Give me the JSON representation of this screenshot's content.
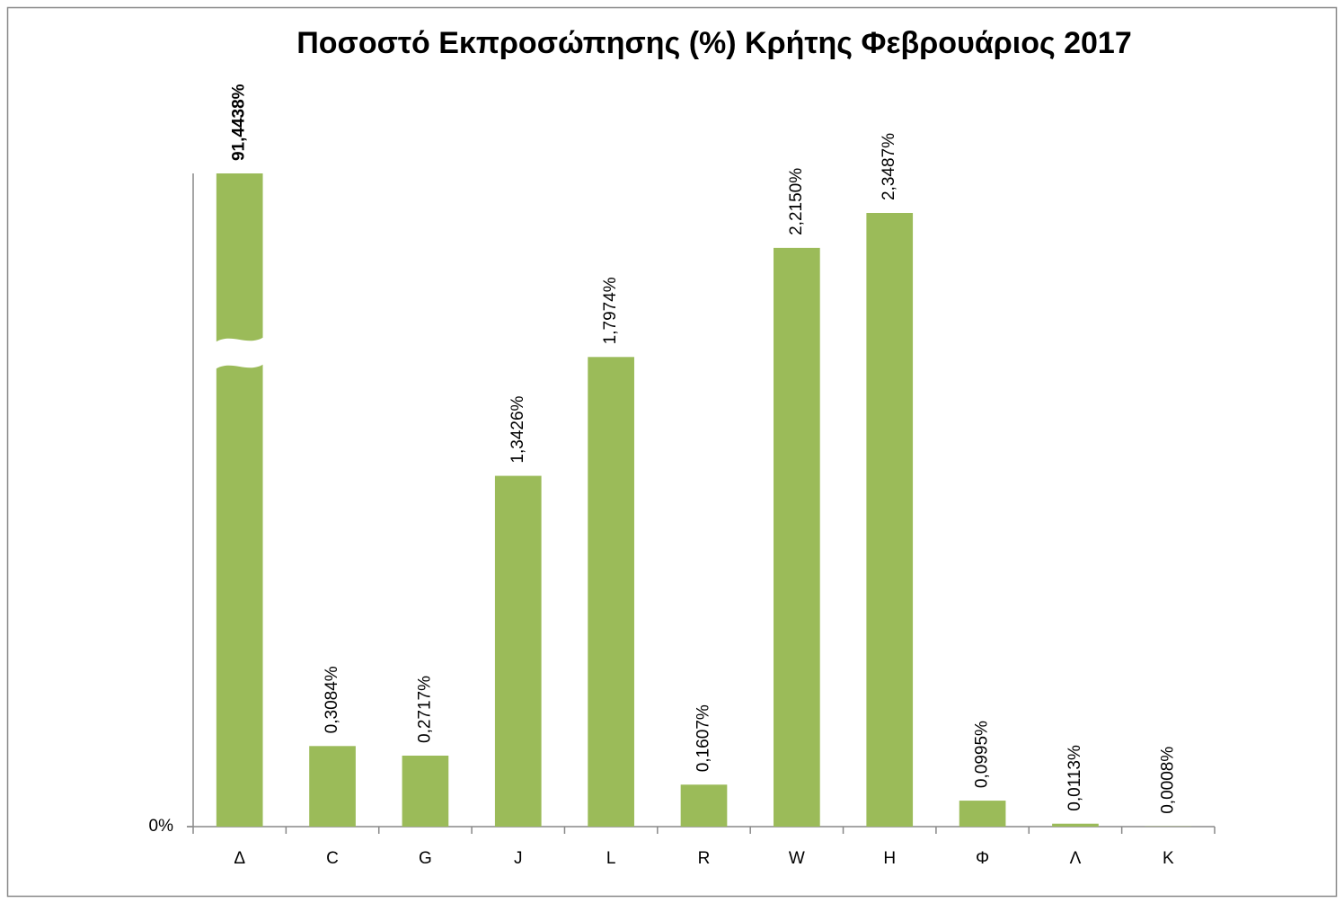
{
  "chart_data": {
    "type": "bar",
    "title": "Ποσοστό Εκπροσώπησης (%) Κρήτης Φεβρουάριος 2017",
    "categories": [
      "Δ",
      "C",
      "G",
      "J",
      "L",
      "R",
      "W",
      "H",
      "Φ",
      "Λ",
      "K"
    ],
    "values": [
      91.4438,
      0.3084,
      0.2717,
      1.3426,
      1.7974,
      0.1607,
      2.215,
      2.3487,
      0.0995,
      0.0113,
      0.0008
    ],
    "value_labels": [
      "91,4438%",
      "0,3084%",
      "0,2717%",
      "1,3426%",
      "1,7974%",
      "0,1607%",
      "2,2150%",
      "2,3487%",
      "0,0995%",
      "0,0113%",
      "0,0008%"
    ],
    "color": "#9bbb59",
    "ylim": [
      0,
      2.5
    ],
    "yticks": [
      {
        "value": 0,
        "label": "0%"
      }
    ],
    "axis_break": true,
    "grid": false
  }
}
